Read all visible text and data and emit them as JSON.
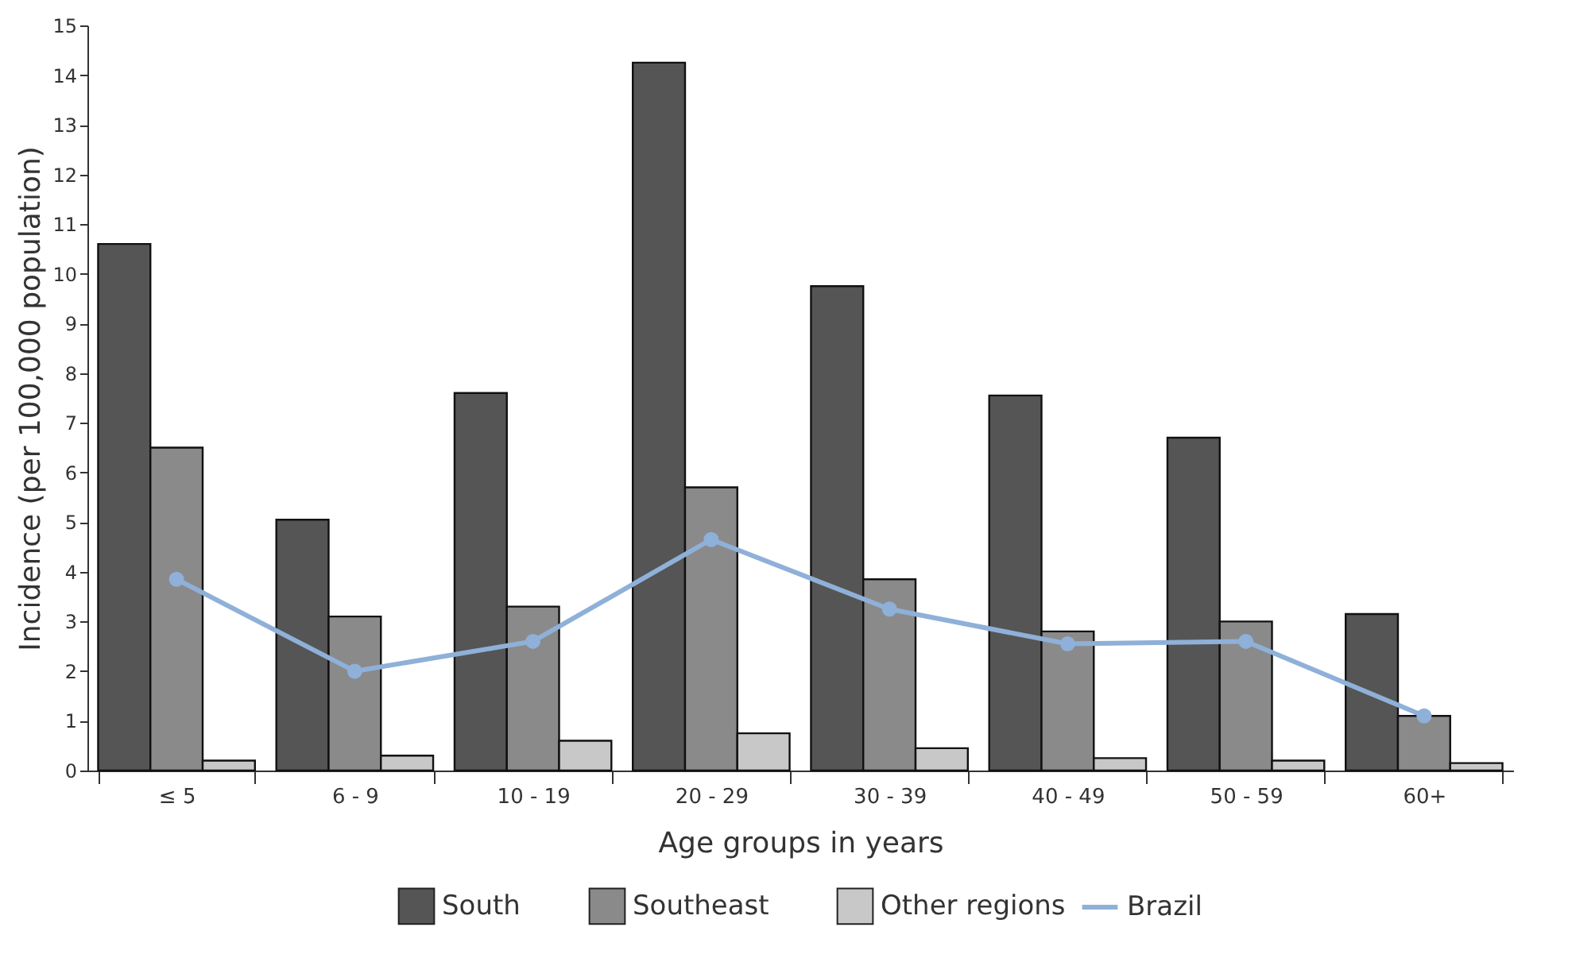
{
  "chart_data": {
    "type": "bar",
    "xlabel": "Age groups in years",
    "ylabel": "Incidence (per 100,000 population)",
    "categories": [
      "≤ 5",
      "6 - 9",
      "10 - 19",
      "20 - 29",
      "30 - 39",
      "40 - 49",
      "50 - 59",
      "60+"
    ],
    "series": [
      {
        "name": "South",
        "color": "#555555",
        "values": [
          10.6,
          5.05,
          7.6,
          14.25,
          9.75,
          7.55,
          6.7,
          3.15
        ]
      },
      {
        "name": "Southeast",
        "color": "#8a8a8a",
        "values": [
          6.5,
          3.1,
          3.3,
          5.7,
          3.85,
          2.8,
          3.0,
          1.1
        ]
      },
      {
        "name": "Other regions",
        "color": "#c8c8c8",
        "values": [
          0.2,
          0.3,
          0.6,
          0.75,
          0.45,
          0.25,
          0.2,
          0.15
        ]
      },
      {
        "name": "Brazil",
        "type": "line",
        "color": "#8fb0d8",
        "marker": "circle",
        "values": [
          3.85,
          2.0,
          2.6,
          4.65,
          3.25,
          2.55,
          2.6,
          1.1
        ]
      }
    ],
    "ylim": [
      0,
      15
    ],
    "yticks": [
      0,
      1,
      2,
      3,
      4,
      5,
      6,
      7,
      8,
      9,
      10,
      11,
      12,
      13,
      14,
      15
    ],
    "grid": false,
    "legend": "bottom"
  }
}
